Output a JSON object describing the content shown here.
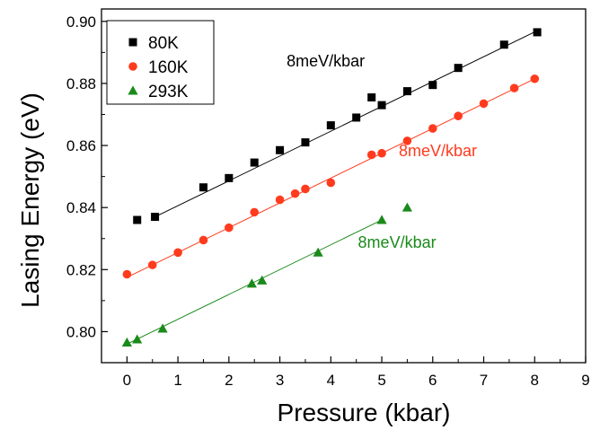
{
  "chart_data": {
    "type": "scatter",
    "xlabel": "Pressure (kbar)",
    "ylabel": "Lasing Energy (eV)",
    "xlim": [
      -0.5,
      9
    ],
    "ylim": [
      0.79,
      0.904
    ],
    "xticks": [
      "0",
      "1",
      "2",
      "3",
      "4",
      "5",
      "6",
      "7",
      "8",
      "9"
    ],
    "yticks": [
      "0.80",
      "0.82",
      "0.84",
      "0.86",
      "0.88",
      "0.90"
    ],
    "grid": false,
    "legend_position": "top-left",
    "series": [
      {
        "name": "80K",
        "marker": "square",
        "color": "#000000",
        "points": [
          [
            0.2,
            0.836
          ],
          [
            0.55,
            0.837
          ],
          [
            1.5,
            0.8465
          ],
          [
            2.0,
            0.8495
          ],
          [
            2.5,
            0.8545
          ],
          [
            3.0,
            0.8585
          ],
          [
            3.5,
            0.861
          ],
          [
            4.0,
            0.8665
          ],
          [
            4.5,
            0.869
          ],
          [
            4.8,
            0.8755
          ],
          [
            5.0,
            0.873
          ],
          [
            5.5,
            0.8775
          ],
          [
            6.0,
            0.8795
          ],
          [
            6.5,
            0.885
          ],
          [
            7.4,
            0.8925
          ],
          [
            8.05,
            0.8965
          ]
        ],
        "fit": [
          [
            0.55,
            0.837
          ],
          [
            8.05,
            0.897
          ]
        ]
      },
      {
        "name": "160K",
        "marker": "circle",
        "color": "#ff3b1e",
        "points": [
          [
            0.0,
            0.8185
          ],
          [
            0.5,
            0.8215
          ],
          [
            1.0,
            0.8255
          ],
          [
            1.5,
            0.8295
          ],
          [
            2.0,
            0.8335
          ],
          [
            2.5,
            0.8385
          ],
          [
            3.0,
            0.8425
          ],
          [
            3.3,
            0.8445
          ],
          [
            3.5,
            0.846
          ],
          [
            4.0,
            0.848
          ],
          [
            4.8,
            0.857
          ],
          [
            5.0,
            0.8575
          ],
          [
            5.5,
            0.8615
          ],
          [
            6.0,
            0.8655
          ],
          [
            6.5,
            0.8695
          ],
          [
            7.0,
            0.8735
          ],
          [
            7.6,
            0.8785
          ],
          [
            8.0,
            0.8815
          ]
        ],
        "fit": [
          [
            0.0,
            0.8175
          ],
          [
            8.0,
            0.8815
          ]
        ]
      },
      {
        "name": "293K",
        "marker": "triangle",
        "color": "#1a8a1a",
        "points": [
          [
            0.0,
            0.7965
          ],
          [
            0.2,
            0.7975
          ],
          [
            0.7,
            0.801
          ],
          [
            2.45,
            0.8155
          ],
          [
            2.65,
            0.8165
          ],
          [
            3.75,
            0.8255
          ],
          [
            5.0,
            0.836
          ],
          [
            5.5,
            0.84
          ]
        ],
        "fit": [
          [
            0.0,
            0.796
          ],
          [
            5.0,
            0.836
          ]
        ]
      }
    ],
    "annotations": [
      {
        "text": "8meV/kbar",
        "color": "#000000",
        "x": 3.9,
        "y": 0.8855
      },
      {
        "text": "8meV/kbar",
        "color": "#ff3b1e",
        "x": 6.1,
        "y": 0.8565
      },
      {
        "text": "8meV/kbar",
        "color": "#1a8a1a",
        "x": 5.3,
        "y": 0.827
      }
    ]
  }
}
